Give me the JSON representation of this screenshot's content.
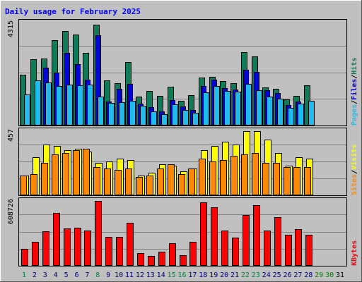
{
  "title": "Daily usage for February 2025",
  "colors": {
    "background": "#c0c0c0",
    "title": "#0000ff",
    "hits": "#117a5b",
    "files": "#0000dd",
    "pages": "#22bbee",
    "visits": "#ffff00",
    "sites": "#ff8800",
    "kbytes": "#ff0000",
    "weekend_day_label": "#008040",
    "weekday_label": "#000080",
    "future_day_label": "#008000"
  },
  "chart_data": [
    {
      "type": "bar",
      "panel": "top",
      "ymax_label": "4315",
      "ylim": [
        0,
        4315
      ],
      "right_label_parts": [
        "Pages",
        "/",
        "Files",
        "/",
        "Hits"
      ],
      "categories": [
        "1",
        "2",
        "3",
        "4",
        "5",
        "6",
        "7",
        "8",
        "9",
        "10",
        "11",
        "12",
        "13",
        "14",
        "15",
        "16",
        "17",
        "18",
        "19",
        "20",
        "21",
        "22",
        "23",
        "24",
        "25",
        "26",
        "27",
        "28"
      ],
      "series": [
        {
          "name": "Hits",
          "values": [
            2100,
            2750,
            2800,
            3550,
            3920,
            3780,
            3020,
            4210,
            1870,
            1770,
            2650,
            1200,
            1430,
            1220,
            1610,
            1030,
            1250,
            2010,
            2040,
            1840,
            1750,
            3060,
            2880,
            1580,
            1520,
            1090,
            1230,
            1660
          ]
        },
        {
          "name": "Files",
          "values": [
            0,
            0,
            2400,
            2190,
            3030,
            2550,
            1920,
            3750,
            990,
            1540,
            1720,
            900,
            760,
            580,
            1050,
            790,
            650,
            1640,
            1920,
            1550,
            1510,
            2330,
            2240,
            1460,
            1350,
            860,
            1010,
            0
          ]
        },
        {
          "name": "Pages",
          "values": [
            1290,
            1880,
            1790,
            1640,
            1690,
            1670,
            1700,
            1200,
            940,
            960,
            1020,
            820,
            600,
            460,
            880,
            640,
            530,
            1380,
            1640,
            1450,
            1410,
            1720,
            1480,
            1200,
            1130,
            730,
            910,
            1020
          ]
        }
      ]
    },
    {
      "type": "bar",
      "panel": "middle",
      "ymax_label": "457",
      "ylim": [
        0,
        457
      ],
      "right_label_parts": [
        "Sites",
        "/",
        "Visits"
      ],
      "categories": [
        "1",
        "2",
        "3",
        "4",
        "5",
        "6",
        "7",
        "8",
        "9",
        "10",
        "11",
        "12",
        "13",
        "14",
        "15",
        "16",
        "17",
        "18",
        "19",
        "20",
        "21",
        "22",
        "23",
        "24",
        "25",
        "26",
        "27",
        "28"
      ],
      "series": [
        {
          "name": "Visits",
          "values": [
            140,
            270,
            360,
            350,
            320,
            330,
            310,
            230,
            240,
            260,
            250,
            140,
            160,
            220,
            210,
            170,
            190,
            320,
            350,
            380,
            360,
            450,
            450,
            390,
            300,
            210,
            270,
            260
          ]
        },
        {
          "name": "Sites",
          "values": [
            140,
            150,
            230,
            290,
            300,
            320,
            330,
            200,
            190,
            180,
            190,
            130,
            140,
            190,
            220,
            150,
            190,
            260,
            240,
            250,
            280,
            290,
            300,
            230,
            230,
            200,
            200,
            200
          ]
        }
      ]
    },
    {
      "type": "bar",
      "panel": "bottom",
      "ymax_label": "608726",
      "ylim": [
        0,
        608726
      ],
      "right_label_parts": [
        "KBytes"
      ],
      "categories": [
        "1",
        "2",
        "3",
        "4",
        "5",
        "6",
        "7",
        "8",
        "9",
        "10",
        "11",
        "12",
        "13",
        "14",
        "15",
        "16",
        "17",
        "18",
        "19",
        "20",
        "21",
        "22",
        "23",
        "24",
        "25",
        "26",
        "27",
        "28"
      ],
      "series": [
        {
          "name": "KBytes",
          "values": [
            160000,
            220000,
            320000,
            490000,
            350000,
            355000,
            330000,
            600000,
            270000,
            270000,
            400000,
            120000,
            90000,
            130000,
            210000,
            100000,
            220000,
            590000,
            540000,
            330000,
            260000,
            470000,
            560000,
            330000,
            450000,
            290000,
            340000,
            290000
          ]
        }
      ]
    }
  ],
  "days": [
    "1",
    "2",
    "3",
    "4",
    "5",
    "6",
    "7",
    "8",
    "9",
    "10",
    "11",
    "12",
    "13",
    "14",
    "15",
    "16",
    "17",
    "18",
    "19",
    "20",
    "21",
    "22",
    "23",
    "24",
    "25",
    "26",
    "27",
    "28",
    "29",
    "30",
    "31"
  ],
  "weekend_days": [
    1,
    8,
    15,
    16,
    22,
    23
  ],
  "future_days": [
    29,
    30
  ]
}
